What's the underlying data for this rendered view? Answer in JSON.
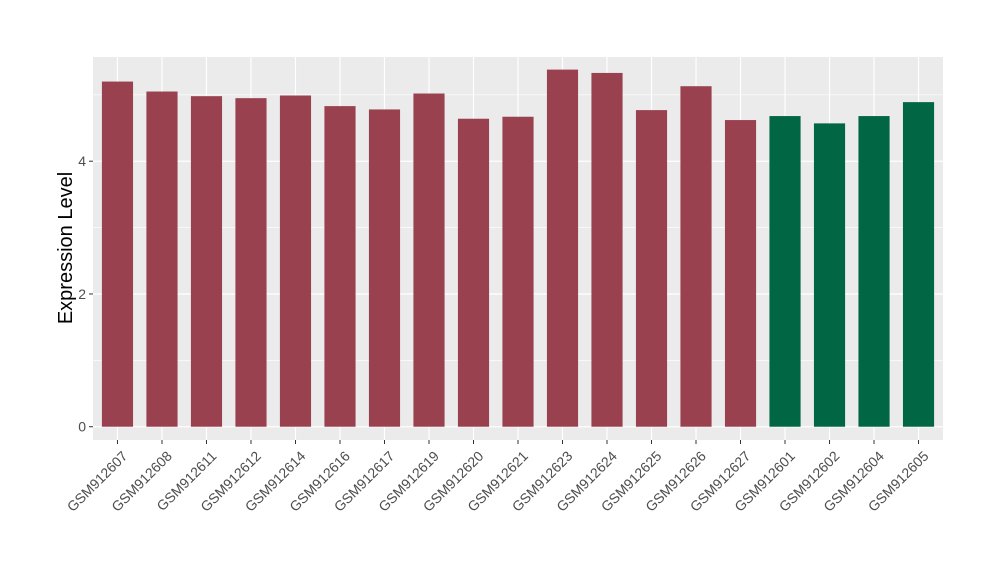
{
  "chart_data": {
    "type": "bar",
    "title": "",
    "xlabel": "",
    "ylabel": "Expression Level",
    "ylim": [
      -0.2,
      5.57
    ],
    "yticks": [
      0,
      2,
      4
    ],
    "grid": true,
    "legend": "none",
    "categories": [
      "GSM912607",
      "GSM912608",
      "GSM912611",
      "GSM912612",
      "GSM912614",
      "GSM912616",
      "GSM912617",
      "GSM912619",
      "GSM912620",
      "GSM912621",
      "GSM912623",
      "GSM912624",
      "GSM912625",
      "GSM912626",
      "GSM912627",
      "GSM912601",
      "GSM912602",
      "GSM912604",
      "GSM912605"
    ],
    "values": [
      5.2,
      5.05,
      4.98,
      4.95,
      4.99,
      4.83,
      4.78,
      5.02,
      4.64,
      4.67,
      5.38,
      5.33,
      4.77,
      5.13,
      4.62,
      4.68,
      4.57,
      4.68,
      4.89
    ],
    "groups": [
      "a",
      "a",
      "a",
      "a",
      "a",
      "a",
      "a",
      "a",
      "a",
      "a",
      "a",
      "a",
      "a",
      "a",
      "a",
      "b",
      "b",
      "b",
      "b"
    ],
    "colors": {
      "a": "#9a4150",
      "b": "#006644"
    },
    "panel_color": "#ebebeb",
    "grid_color": "#ffffff"
  }
}
